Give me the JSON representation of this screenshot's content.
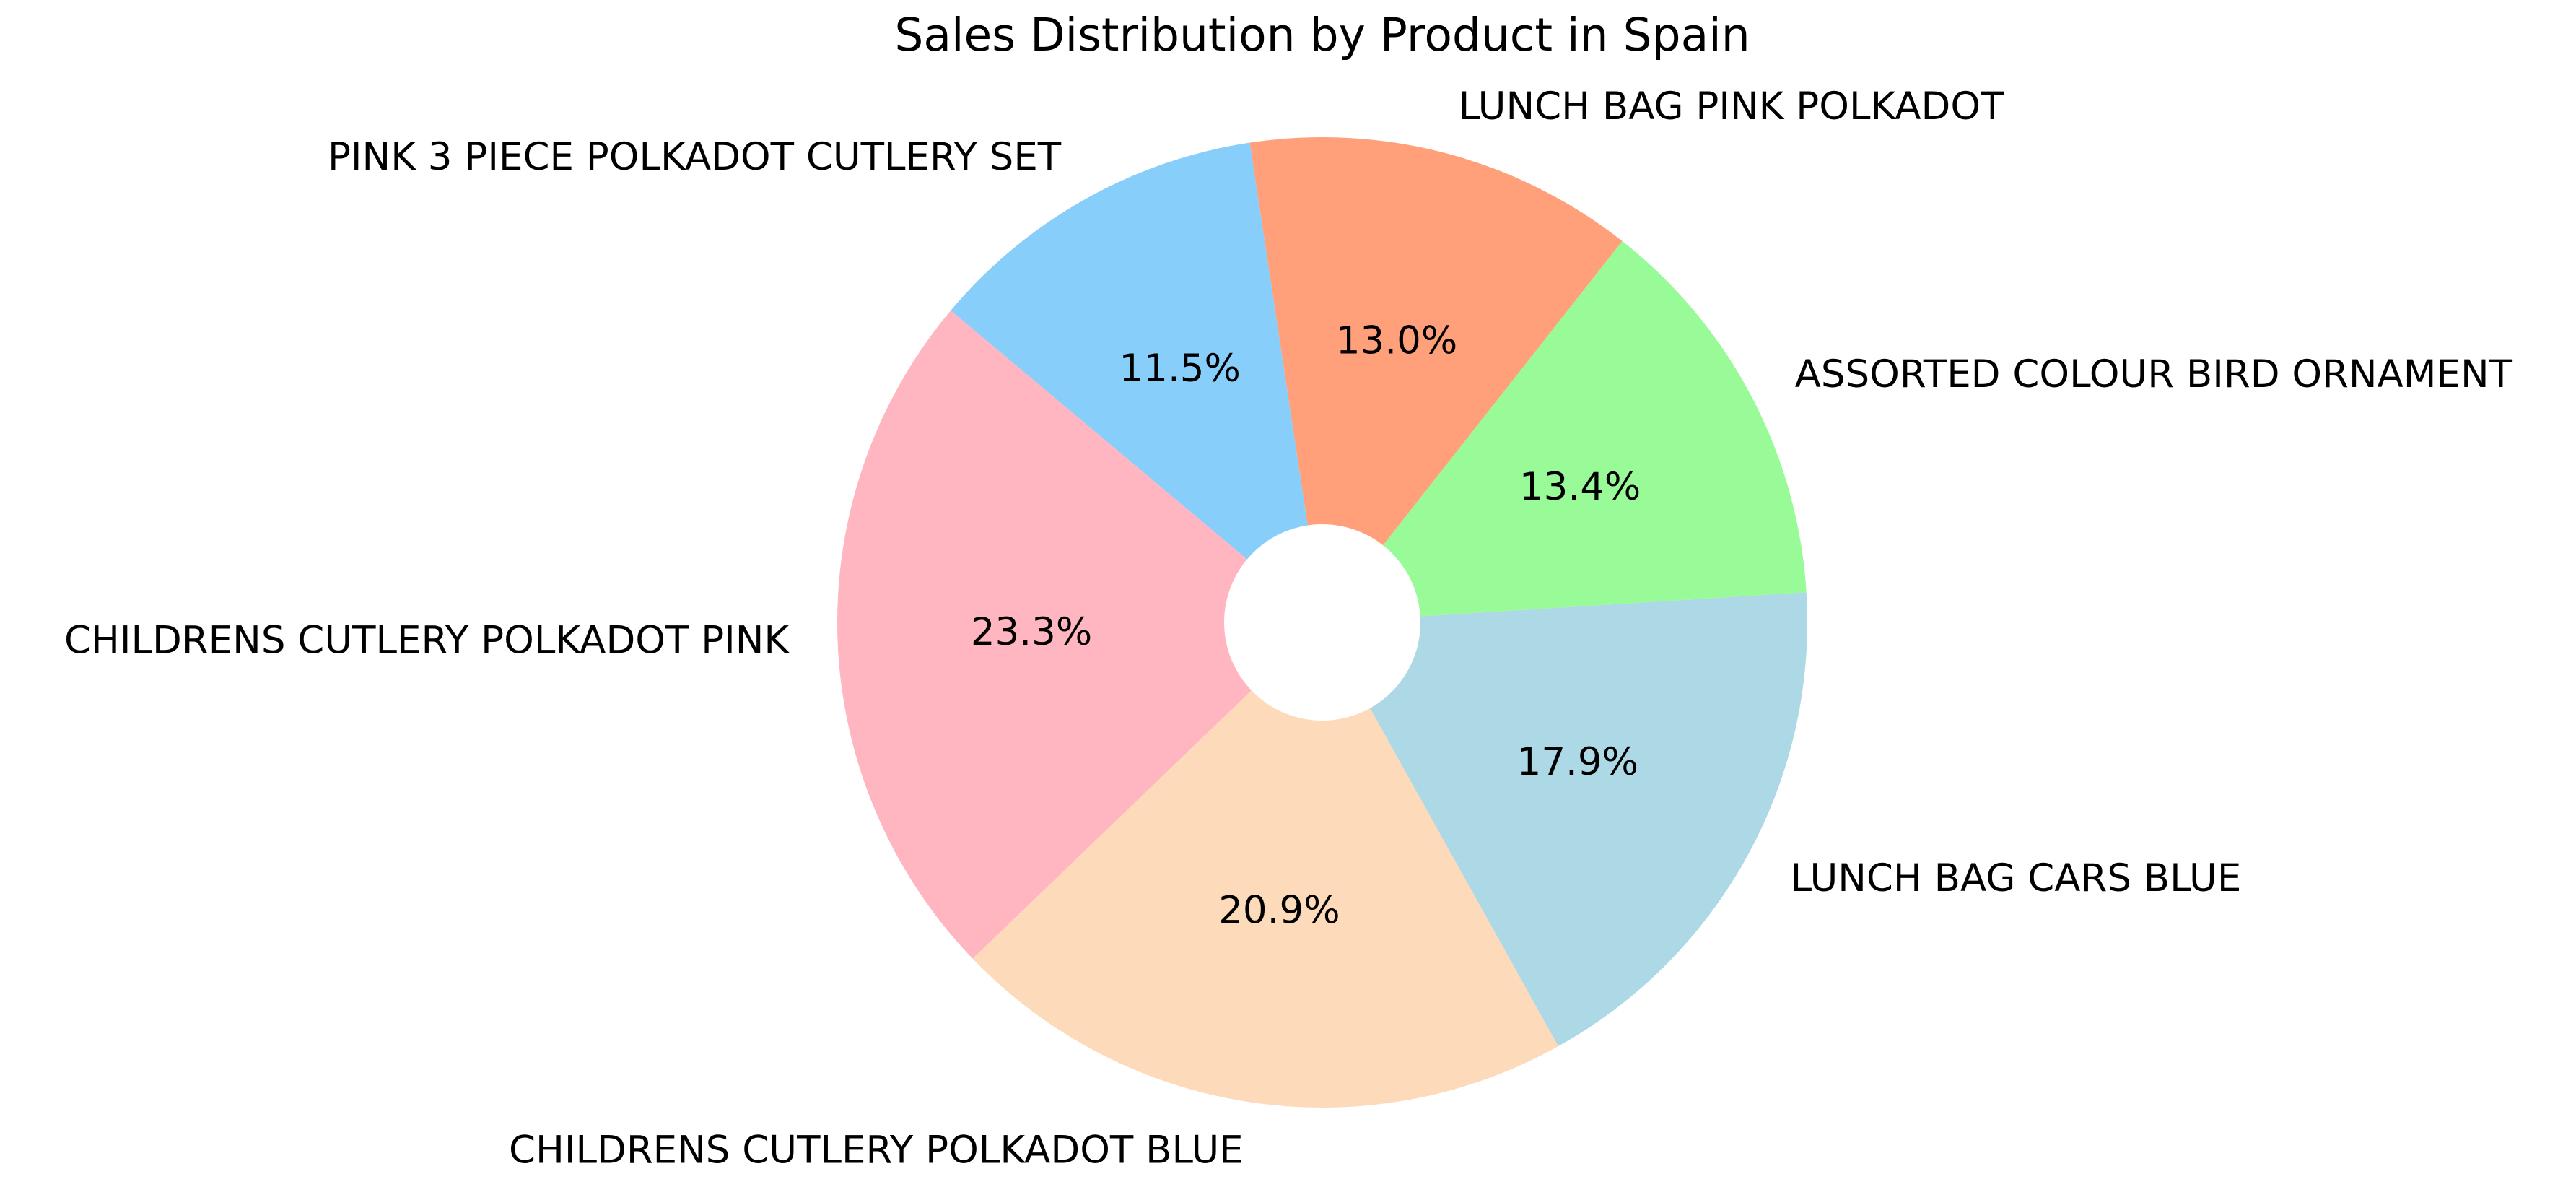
{
  "chart_data": {
    "type": "pie",
    "title": "Sales Distribution by Product in Spain",
    "slices": [
      {
        "label": "CHILDRENS CUTLERY POLKADOT PINK",
        "value": 23.3,
        "pct_label": "23.3%",
        "color": "#FFB6C1"
      },
      {
        "label": "CHILDRENS CUTLERY POLKADOT BLUE",
        "value": 20.9,
        "pct_label": "20.9%",
        "color": "#FDDAB9"
      },
      {
        "label": "LUNCH BAG CARS BLUE",
        "value": 17.9,
        "pct_label": "17.9%",
        "color": "#ADD8E6"
      },
      {
        "label": "ASSORTED COLOUR BIRD ORNAMENT",
        "value": 13.4,
        "pct_label": "13.4%",
        "color": "#98FB98"
      },
      {
        "label": "LUNCH BAG PINK POLKADOT",
        "value": 13.0,
        "pct_label": "13.0%",
        "color": "#FFA07A"
      },
      {
        "label": "PINK 3 PIECE POLKADOT CUTLERY SET",
        "value": 11.5,
        "pct_label": "11.5%",
        "color": "#87CEFA"
      }
    ],
    "donut_hole": true,
    "legend": "none"
  }
}
